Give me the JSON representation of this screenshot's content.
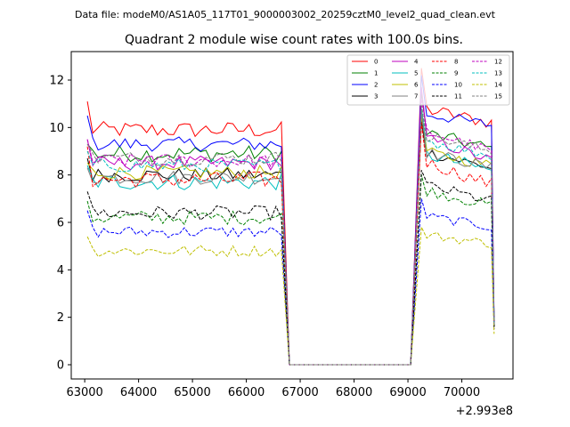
{
  "header": {
    "data_file": "Data file: modeM0/AS1A05_117T01_9000003002_20259cztM0_level2_quad_clean.evt"
  },
  "chart_data": {
    "type": "line",
    "title": "Quadrant 2 module wise count rates with 100.0s bins.",
    "xlabel": "",
    "ylabel": "",
    "x_offset_label": "+2.993e8",
    "xlim": [
      62750,
      70950
    ],
    "ylim": [
      -0.6,
      13.2
    ],
    "x_ticks": [
      63000,
      64000,
      65000,
      66000,
      67000,
      68000,
      69000,
      70000
    ],
    "x_tick_labels": [
      "63000",
      "64000",
      "65000",
      "66000",
      "67000",
      "68000",
      "69000",
      "70000"
    ],
    "y_ticks": [
      0,
      2,
      4,
      6,
      8,
      10,
      12
    ],
    "y_tick_labels": [
      "0",
      "2",
      "4",
      "6",
      "8",
      "10",
      "12"
    ],
    "x_segments": [
      {
        "start": 63050,
        "end": 66650,
        "step": 100
      },
      {
        "x": 66800,
        "zero": true
      },
      {
        "x": 69050,
        "zero": true
      },
      {
        "start": 69250,
        "end": 70550,
        "step": 100
      },
      {
        "x": 70600,
        "tail": true
      }
    ],
    "series": [
      {
        "name": "0",
        "color": "#ff0000",
        "dashed": false,
        "level": 9.9,
        "start": 11.1,
        "peak": 12.5,
        "post": 10.8,
        "end": 10.2,
        "tail": 1.8,
        "noise": 0.35
      },
      {
        "name": "1",
        "color": "#008000",
        "dashed": false,
        "level": 8.9,
        "start": 9.3,
        "peak": 11.5,
        "post": 9.8,
        "end": 9.1,
        "tail": 1.8,
        "noise": 0.35
      },
      {
        "name": "2",
        "color": "#0000ff",
        "dashed": false,
        "level": 9.3,
        "start": 10.5,
        "peak": 12.2,
        "post": 10.6,
        "end": 10.1,
        "tail": 1.9,
        "noise": 0.3
      },
      {
        "name": "3",
        "color": "#000000",
        "dashed": false,
        "level": 8.0,
        "start": 8.7,
        "peak": 10.3,
        "post": 9.0,
        "end": 8.3,
        "tail": 1.7,
        "noise": 0.3
      },
      {
        "name": "4",
        "color": "#bf00bf",
        "dashed": false,
        "level": 8.5,
        "start": 9.5,
        "peak": 11.7,
        "post": 9.6,
        "end": 8.6,
        "tail": 1.7,
        "noise": 0.3
      },
      {
        "name": "5",
        "color": "#00bfbf",
        "dashed": false,
        "level": 7.7,
        "start": 8.4,
        "peak": 10.8,
        "post": 8.9,
        "end": 8.2,
        "tail": 1.8,
        "noise": 0.35
      },
      {
        "name": "6",
        "color": "#bfbf00",
        "dashed": false,
        "level": 8.1,
        "start": 8.5,
        "peak": 10.5,
        "post": 9.0,
        "end": 8.4,
        "tail": 1.6,
        "noise": 0.3
      },
      {
        "name": "7",
        "color": "#808080",
        "dashed": false,
        "level": 7.9,
        "start": 8.3,
        "peak": 10.7,
        "post": 9.0,
        "end": 8.3,
        "tail": 1.7,
        "noise": 0.3
      },
      {
        "name": "8",
        "color": "#ff0000",
        "dashed": true,
        "level": 7.8,
        "start": 9.2,
        "peak": 10.2,
        "post": 8.6,
        "end": 7.6,
        "tail": 1.6,
        "noise": 0.35
      },
      {
        "name": "9",
        "color": "#008000",
        "dashed": true,
        "level": 6.2,
        "start": 6.9,
        "peak": 8.0,
        "post": 7.4,
        "end": 6.7,
        "tail": 1.6,
        "noise": 0.3
      },
      {
        "name": "10",
        "color": "#0000ff",
        "dashed": true,
        "level": 5.6,
        "start": 6.5,
        "peak": 7.0,
        "post": 6.3,
        "end": 5.8,
        "tail": 1.5,
        "noise": 0.25
      },
      {
        "name": "11",
        "color": "#000000",
        "dashed": true,
        "level": 6.4,
        "start": 7.3,
        "peak": 8.2,
        "post": 7.6,
        "end": 6.9,
        "tail": 1.6,
        "noise": 0.3
      },
      {
        "name": "12",
        "color": "#bf00bf",
        "dashed": true,
        "level": 8.6,
        "start": 9.5,
        "peak": 11.2,
        "post": 9.9,
        "end": 9.0,
        "tail": 1.7,
        "noise": 0.3
      },
      {
        "name": "13",
        "color": "#00bfbf",
        "dashed": true,
        "level": 8.4,
        "start": 9.0,
        "peak": 10.9,
        "post": 9.5,
        "end": 8.8,
        "tail": 1.7,
        "noise": 0.3
      },
      {
        "name": "14",
        "color": "#bfbf00",
        "dashed": true,
        "level": 4.8,
        "start": 5.4,
        "peak": 5.8,
        "post": 5.5,
        "end": 5.1,
        "tail": 1.3,
        "noise": 0.25
      },
      {
        "name": "15",
        "color": "#808080",
        "dashed": true,
        "level": 8.7,
        "start": 9.3,
        "peak": 11.0,
        "post": 9.7,
        "end": 9.0,
        "tail": 1.7,
        "noise": 0.3
      }
    ],
    "legend_placement": "top-right",
    "legend_columns": 4,
    "grid": false
  }
}
